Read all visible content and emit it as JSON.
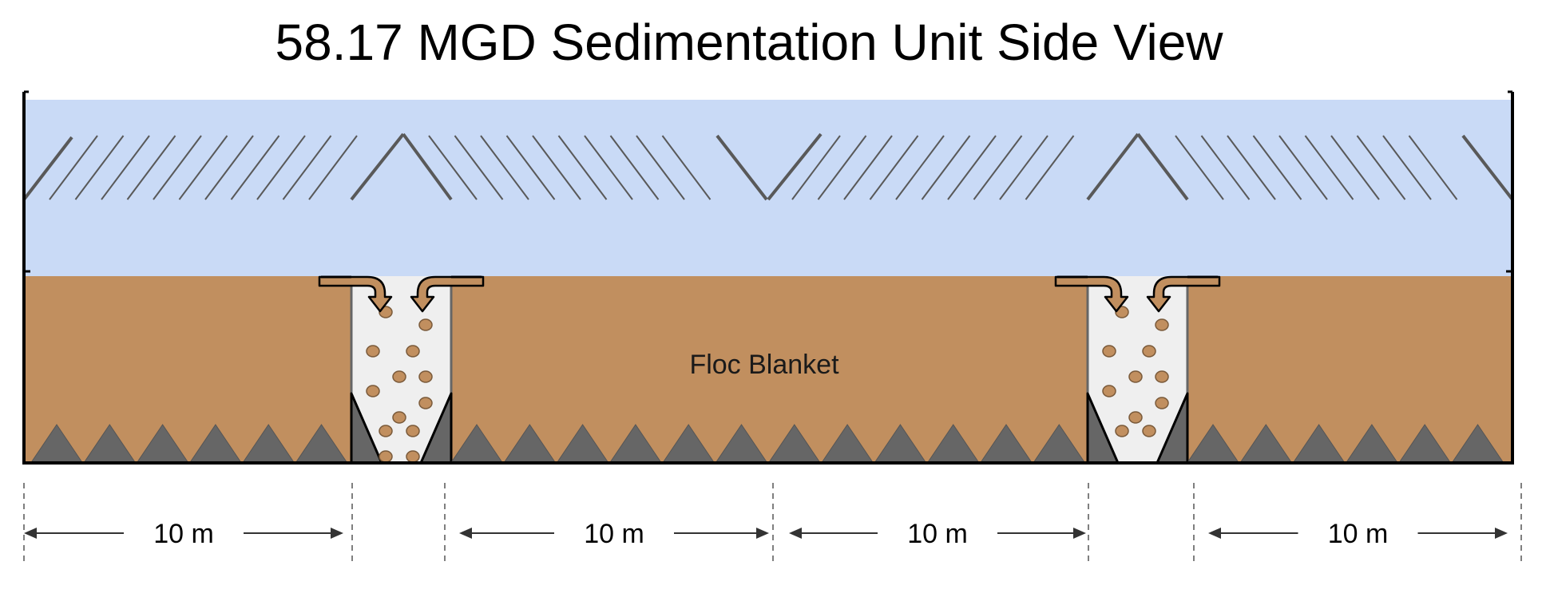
{
  "title": "58.17 MGD Sedimentation Unit Side View",
  "blanket_label": "Floc Blanket",
  "dimensions": [
    {
      "label": "10 m"
    },
    {
      "label": "10 m"
    },
    {
      "label": "10 m"
    },
    {
      "label": "10 m"
    }
  ],
  "colors": {
    "water": "#c9daf6",
    "floc": "#c18f5f",
    "jet_cone": "#666666",
    "channel": "#efefef",
    "floc_particle": "#c18f5f",
    "outline": "#000000",
    "plate": "#595959",
    "arrow_fill": "#c18f5f"
  },
  "icons": {
    "jet_cone": "triangle",
    "floc_particle": "circle",
    "flow_arrow": "curved-down-arrow"
  }
}
